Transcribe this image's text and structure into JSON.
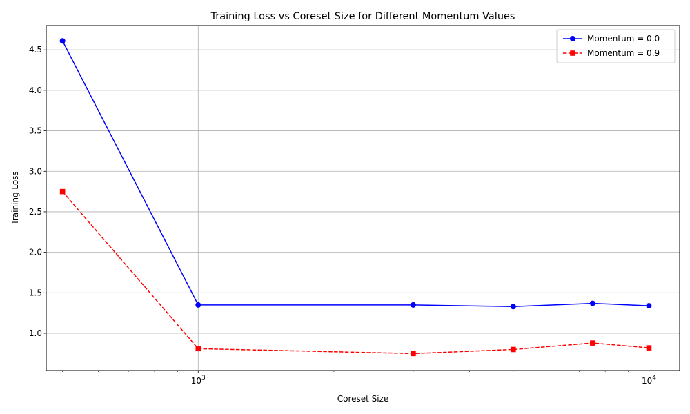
{
  "chart_data": {
    "type": "line",
    "title": "Training Loss vs Coreset Size for Different Momentum Values",
    "xlabel": "Coreset Size",
    "ylabel": "Training Loss",
    "xscale": "log",
    "xlim": [
      460,
      11700
    ],
    "ylim": [
      0.54,
      4.8
    ],
    "grid": true,
    "legend_position": "top-right",
    "x_ticks": [
      {
        "value": 1000,
        "base": "10",
        "exp": "3"
      },
      {
        "value": 10000,
        "base": "10",
        "exp": "4"
      }
    ],
    "y_ticks": [
      "1.0",
      "1.5",
      "2.0",
      "2.5",
      "3.0",
      "3.5",
      "4.0",
      "4.5"
    ],
    "x": [
      500,
      1000,
      3000,
      5000,
      7500,
      10000
    ],
    "series": [
      {
        "name": "Momentum = 0.0",
        "color": "#0000ff",
        "line_style": "solid",
        "marker": "circle",
        "values": [
          4.61,
          1.35,
          1.35,
          1.33,
          1.37,
          1.34
        ]
      },
      {
        "name": "Momentum = 0.9",
        "color": "#ff0000",
        "line_style": "dashed",
        "marker": "square",
        "values": [
          2.75,
          0.81,
          0.75,
          0.8,
          0.88,
          0.82
        ]
      }
    ]
  }
}
